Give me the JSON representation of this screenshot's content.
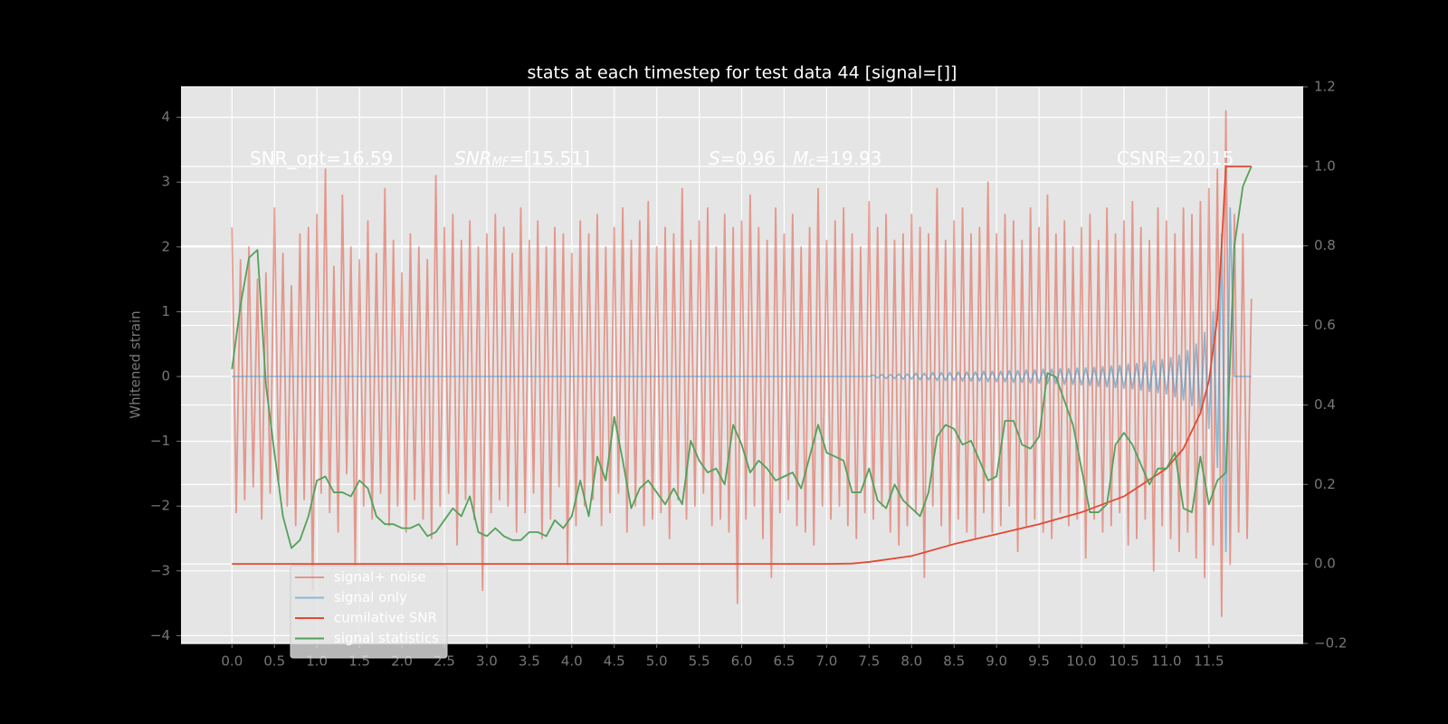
{
  "chart_data": {
    "type": "line",
    "title": "stats at each timestep for test data 44 [signal=[]]",
    "y_label": "Whitened strain",
    "grid": true,
    "y2grid": true,
    "legend": "lower left",
    "xlim": [
      -0.6,
      12.61
    ],
    "ylim": [
      -4.12,
      4.47
    ],
    "y2lim": [
      -0.2,
      1.2
    ],
    "xticks": [
      {
        "value": 0,
        "label": "0.0"
      },
      0.5,
      {
        "value": 1,
        "label": "1.0"
      },
      1.5,
      {
        "value": 2,
        "label": "2.0"
      },
      2.5,
      {
        "value": 3,
        "label": "3.0"
      },
      3.5,
      {
        "value": 4,
        "label": "4.0"
      },
      4.5,
      {
        "value": 5,
        "label": "5.0"
      },
      5.5,
      {
        "value": 6,
        "label": "6.0"
      },
      6.5,
      {
        "value": 7,
        "label": "7.0"
      },
      7.5,
      {
        "value": 8,
        "label": "8.0"
      },
      8.5,
      {
        "value": 9,
        "label": "9.0"
      },
      9.5,
      {
        "value": 10,
        "label": "10.0"
      },
      10.5,
      {
        "value": 11,
        "label": "11.0"
      },
      11.5
    ],
    "yticks": [
      {
        "value": -4,
        "label": "−4"
      },
      {
        "value": -3,
        "label": "−3"
      },
      {
        "value": -2,
        "label": "−2"
      },
      {
        "value": -1,
        "label": "−1"
      },
      0,
      1,
      2,
      3,
      4
    ],
    "y2ticks": [
      {
        "value": -0.2,
        "label": "−0.2"
      },
      {
        "value": 0,
        "label": "0.0"
      },
      0.2,
      0.4,
      0.6,
      0.8,
      {
        "value": 1,
        "label": "1.0"
      },
      1.2
    ],
    "annotations": [
      {
        "segments": [
          {
            "text": "SNR_opt=16.59"
          }
        ]
      },
      {
        "segments": [
          {
            "text": "SNR",
            "style": "italic"
          },
          {
            "text": "MF",
            "style": "italic-sub"
          },
          {
            "text": "=[15.51]"
          }
        ]
      },
      {
        "segments": [
          {
            "text": "S",
            "style": "italic"
          },
          {
            "text": "=0.96 , "
          },
          {
            "text": "M",
            "style": "italic"
          },
          {
            "text": "c",
            "style": "sub"
          },
          {
            "text": "=19.93"
          }
        ]
      },
      {
        "segments": [
          {
            "text": "CSNR=20.15"
          }
        ]
      }
    ],
    "x": [
      0,
      0.05,
      0.1,
      0.15,
      0.2,
      0.25,
      0.3,
      0.35,
      0.4,
      0.45,
      0.5,
      0.55,
      0.6,
      0.65,
      0.7,
      0.75,
      0.8,
      0.85,
      0.9,
      0.95,
      1,
      1.05,
      1.1,
      1.15,
      1.2,
      1.25,
      1.3,
      1.35,
      1.4,
      1.45,
      1.5,
      1.55,
      1.6,
      1.65,
      1.7,
      1.75,
      1.8,
      1.85,
      1.9,
      1.95,
      2,
      2.05,
      2.1,
      2.15,
      2.2,
      2.25,
      2.3,
      2.35,
      2.4,
      2.45,
      2.5,
      2.55,
      2.6,
      2.65,
      2.7,
      2.75,
      2.8,
      2.85,
      2.9,
      2.95,
      3,
      3.05,
      3.1,
      3.15,
      3.2,
      3.25,
      3.3,
      3.35,
      3.4,
      3.45,
      3.5,
      3.55,
      3.6,
      3.65,
      3.7,
      3.75,
      3.8,
      3.85,
      3.9,
      3.95,
      4,
      4.05,
      4.1,
      4.15,
      4.2,
      4.25,
      4.3,
      4.35,
      4.4,
      4.45,
      4.5,
      4.55,
      4.6,
      4.65,
      4.7,
      4.75,
      4.8,
      4.85,
      4.9,
      4.95,
      5,
      5.05,
      5.1,
      5.15,
      5.2,
      5.25,
      5.3,
      5.35,
      5.4,
      5.45,
      5.5,
      5.55,
      5.6,
      5.65,
      5.7,
      5.75,
      5.8,
      5.85,
      5.9,
      5.95,
      6,
      6.05,
      6.1,
      6.15,
      6.2,
      6.25,
      6.3,
      6.35,
      6.4,
      6.45,
      6.5,
      6.55,
      6.6,
      6.65,
      6.7,
      6.75,
      6.8,
      6.85,
      6.9,
      6.95,
      7,
      7.05,
      7.1,
      7.15,
      7.2,
      7.25,
      7.3,
      7.35,
      7.4,
      7.45,
      7.5,
      7.55,
      7.6,
      7.65,
      7.7,
      7.75,
      7.8,
      7.85,
      7.9,
      7.95,
      8,
      8.05,
      8.1,
      8.15,
      8.2,
      8.25,
      8.3,
      8.35,
      8.4,
      8.45,
      8.5,
      8.55,
      8.6,
      8.65,
      8.7,
      8.75,
      8.8,
      8.85,
      8.9,
      8.95,
      9,
      9.05,
      9.1,
      9.15,
      9.2,
      9.25,
      9.3,
      9.35,
      9.4,
      9.45,
      9.5,
      9.55,
      9.6,
      9.65,
      9.7,
      9.75,
      9.8,
      9.85,
      9.9,
      9.95,
      10,
      10.05,
      10.1,
      10.15,
      10.2,
      10.25,
      10.3,
      10.35,
      10.4,
      10.45,
      10.5,
      10.55,
      10.6,
      10.65,
      10.7,
      10.75,
      10.8,
      10.85,
      10.9,
      10.95,
      11,
      11.05,
      11.1,
      11.15,
      11.2,
      11.25,
      11.3,
      11.35,
      11.4,
      11.45,
      11.5,
      11.55,
      11.6,
      11.65,
      11.7,
      11.75,
      11.8,
      11.85,
      11.9,
      11.95,
      12
    ],
    "series": [
      {
        "name": "signal+ noise",
        "color": "#e24a33",
        "opacity": 0.5,
        "values": [
          2.3,
          -2.1,
          1.8,
          -1.9,
          2.0,
          -1.7,
          1.5,
          -2.2,
          1.6,
          -1.8,
          2.6,
          -1.6,
          1.9,
          -2.0,
          1.4,
          -2.3,
          2.2,
          -1.9,
          2.3,
          -3.3,
          2.5,
          -1.8,
          3.2,
          -2.1,
          1.7,
          -2.4,
          2.8,
          -1.5,
          2.0,
          -2.9,
          1.8,
          -2.0,
          2.4,
          -2.2,
          1.9,
          -1.8,
          2.9,
          -2.3,
          2.1,
          -2.0,
          1.6,
          -2.4,
          2.2,
          -1.9,
          2.0,
          -2.2,
          1.8,
          -2.5,
          3.1,
          -2.0,
          2.3,
          -1.8,
          2.5,
          -2.6,
          2.1,
          -1.9,
          2.4,
          -2.2,
          2.0,
          -3.3,
          2.2,
          -2.1,
          2.5,
          -1.9,
          2.3,
          -2.0,
          1.9,
          -2.4,
          2.6,
          -2.1,
          2.1,
          -1.8,
          2.4,
          -2.5,
          2.0,
          -2.2,
          2.3,
          -1.7,
          2.2,
          -2.9,
          1.9,
          -2.3,
          2.4,
          -2.0,
          2.2,
          -1.9,
          2.5,
          -2.3,
          2.0,
          -2.1,
          2.3,
          -1.8,
          2.6,
          -2.4,
          2.1,
          -2.0,
          2.4,
          -2.3,
          2.7,
          -2.2,
          2.0,
          -2.1,
          2.3,
          -2.5,
          2.2,
          -1.9,
          2.9,
          -2.2,
          2.1,
          -2.0,
          2.4,
          -1.8,
          2.6,
          -2.3,
          2.0,
          -2.2,
          2.5,
          -2.4,
          2.3,
          -3.5,
          2.4,
          -2.2,
          2.8,
          -2.0,
          2.3,
          -2.5,
          2.1,
          -3.1,
          2.6,
          -2.1,
          2.2,
          -1.9,
          2.5,
          -2.3,
          2.0,
          -2.4,
          2.3,
          -2.6,
          2.9,
          -2.0,
          2.1,
          -2.2,
          2.4,
          -2.0,
          2.6,
          -2.3,
          2.2,
          -2.5,
          2.0,
          -2.1,
          2.7,
          -2.2,
          2.3,
          -2.0,
          2.5,
          -2.4,
          2.1,
          -2.6,
          2.2,
          -2.3,
          2.5,
          -2.1,
          2.3,
          -3.1,
          2.2,
          -2.0,
          2.9,
          -2.3,
          2.1,
          -2.6,
          2.4,
          -2.2,
          2.6,
          -2.4,
          2.2,
          -2.5,
          2.3,
          -2.1,
          3.0,
          -2.4,
          2.2,
          -2.3,
          2.5,
          -2.0,
          2.4,
          -2.7,
          2.1,
          -2.3,
          2.6,
          -2.2,
          2.3,
          -2.4,
          2.8,
          -2.5,
          2.2,
          -2.1,
          2.4,
          -2.3,
          2.0,
          -2.2,
          2.3,
          -2.8,
          2.5,
          -2.2,
          2.1,
          -2.4,
          2.6,
          -2.3,
          2.2,
          -2.1,
          2.4,
          -2.6,
          2.7,
          -2.5,
          2.3,
          -2.2,
          2.1,
          -3.0,
          2.6,
          -2.3,
          2.4,
          -2.5,
          2.2,
          -2.7,
          2.6,
          -2.4,
          2.5,
          -2.8,
          2.7,
          -3.1,
          2.9,
          -2.6,
          3.2,
          -3.7,
          4.1,
          -2.9,
          2.5,
          -2.4,
          2.2,
          -2.5,
          1.2
        ]
      },
      {
        "name": "signal only",
        "color": "#348abd",
        "opacity": 0.5,
        "values": [
          0,
          0,
          0,
          0,
          0,
          0,
          0,
          0,
          0,
          0,
          0,
          0,
          0,
          0,
          0,
          0,
          0,
          0,
          0,
          0,
          0,
          0,
          0,
          0,
          0,
          0,
          0,
          0,
          0,
          0,
          0,
          0,
          0,
          0,
          0,
          0,
          0,
          0,
          0,
          0,
          0,
          0,
          0,
          0,
          0,
          0,
          0,
          0,
          0,
          0,
          0,
          0,
          0,
          0,
          0,
          0,
          0,
          0,
          0,
          0,
          0,
          0,
          0,
          0,
          0,
          0,
          0,
          0,
          0,
          0,
          0,
          0,
          0,
          0,
          0,
          0,
          0,
          0,
          0,
          0,
          0,
          0,
          0,
          0,
          0,
          0,
          0,
          0,
          0,
          0,
          0,
          0,
          0,
          0,
          0,
          0,
          0,
          0,
          0,
          0,
          0,
          0,
          0,
          0,
          0,
          0,
          0,
          0,
          0,
          0,
          0,
          0,
          0,
          0,
          0,
          0,
          0,
          0,
          0,
          0,
          0,
          0,
          0,
          0,
          0,
          0,
          0,
          0,
          0,
          0,
          0,
          0,
          0,
          0,
          0,
          0,
          0,
          0,
          0,
          0,
          0,
          0,
          0,
          0,
          0,
          0,
          0,
          0,
          0,
          0,
          0,
          0.02,
          -0.02,
          0.03,
          -0.03,
          0.03,
          -0.03,
          0.04,
          -0.04,
          0.04,
          -0.04,
          0.05,
          -0.05,
          0.05,
          -0.05,
          0.06,
          -0.06,
          0.06,
          -0.06,
          0.06,
          -0.06,
          0.07,
          -0.07,
          0.07,
          -0.07,
          0.07,
          -0.07,
          0.08,
          -0.08,
          0.08,
          -0.08,
          0.08,
          -0.08,
          0.09,
          -0.09,
          0.09,
          -0.09,
          0.1,
          -0.1,
          0.1,
          -0.1,
          0.11,
          -0.11,
          0.11,
          -0.11,
          0.12,
          -0.12,
          0.12,
          -0.12,
          0.13,
          -0.13,
          0.13,
          -0.14,
          0.14,
          -0.15,
          0.15,
          -0.16,
          0.16,
          -0.17,
          0.17,
          -0.18,
          0.19,
          -0.19,
          0.2,
          -0.21,
          0.22,
          -0.23,
          0.24,
          -0.25,
          0.26,
          -0.27,
          0.29,
          -0.31,
          0.33,
          -0.36,
          0.4,
          -0.45,
          0.5,
          -0.58,
          0.68,
          -0.8,
          1.0,
          -1.4,
          2.2,
          -2.7,
          2.6,
          0,
          0,
          0,
          0,
          0
        ]
      },
      {
        "name": "cumilative SNR",
        "color": "#e24a33",
        "axis": "y2",
        "x": [
          0,
          7.0,
          7.3,
          7.5,
          8.0,
          8.5,
          9.0,
          9.5,
          10.0,
          10.5,
          11.0,
          11.2,
          11.4,
          11.5,
          11.6,
          11.65,
          11.7,
          12.0
        ],
        "values": [
          0,
          0,
          0.001,
          0.005,
          0.02,
          0.05,
          0.075,
          0.1,
          0.13,
          0.17,
          0.24,
          0.29,
          0.38,
          0.46,
          0.62,
          0.8,
          1.0,
          1.0
        ]
      },
      {
        "name": "signal statistics",
        "color": "#55a05a",
        "axis": "y2",
        "x": [
          0,
          0.1,
          0.2,
          0.3,
          0.4,
          0.5,
          0.6,
          0.7,
          0.8,
          0.9,
          1,
          1.1,
          1.2,
          1.3,
          1.4,
          1.5,
          1.6,
          1.7,
          1.8,
          1.9,
          2,
          2.1,
          2.2,
          2.3,
          2.4,
          2.5,
          2.6,
          2.7,
          2.8,
          2.9,
          3,
          3.1,
          3.2,
          3.3,
          3.4,
          3.5,
          3.6,
          3.7,
          3.8,
          3.9,
          4,
          4.1,
          4.2,
          4.3,
          4.4,
          4.5,
          4.6,
          4.7,
          4.8,
          4.9,
          5,
          5.1,
          5.2,
          5.3,
          5.4,
          5.5,
          5.6,
          5.7,
          5.8,
          5.9,
          6,
          6.1,
          6.2,
          6.3,
          6.4,
          6.5,
          6.6,
          6.7,
          6.8,
          6.9,
          7,
          7.1,
          7.2,
          7.3,
          7.4,
          7.5,
          7.6,
          7.7,
          7.8,
          7.9,
          8,
          8.1,
          8.2,
          8.3,
          8.4,
          8.5,
          8.6,
          8.7,
          8.8,
          8.9,
          9,
          9.1,
          9.2,
          9.3,
          9.4,
          9.5,
          9.6,
          9.7,
          9.8,
          9.9,
          10,
          10.1,
          10.2,
          10.3,
          10.4,
          10.5,
          10.6,
          10.7,
          10.8,
          10.9,
          11,
          11.1,
          11.2,
          11.3,
          11.4,
          11.5,
          11.6,
          11.7,
          11.8,
          11.9,
          12
        ],
        "values": [
          0.49,
          0.65,
          0.77,
          0.79,
          0.45,
          0.28,
          0.12,
          0.04,
          0.06,
          0.12,
          0.21,
          0.22,
          0.18,
          0.18,
          0.17,
          0.21,
          0.19,
          0.12,
          0.1,
          0.1,
          0.09,
          0.09,
          0.1,
          0.07,
          0.08,
          0.11,
          0.14,
          0.12,
          0.17,
          0.08,
          0.07,
          0.09,
          0.07,
          0.06,
          0.06,
          0.08,
          0.08,
          0.07,
          0.11,
          0.09,
          0.12,
          0.21,
          0.12,
          0.27,
          0.21,
          0.37,
          0.26,
          0.14,
          0.19,
          0.21,
          0.18,
          0.15,
          0.19,
          0.15,
          0.31,
          0.26,
          0.23,
          0.24,
          0.2,
          0.35,
          0.3,
          0.23,
          0.26,
          0.24,
          0.21,
          0.22,
          0.23,
          0.19,
          0.27,
          0.35,
          0.28,
          0.27,
          0.26,
          0.18,
          0.18,
          0.24,
          0.16,
          0.14,
          0.2,
          0.16,
          0.14,
          0.12,
          0.18,
          0.32,
          0.35,
          0.34,
          0.3,
          0.31,
          0.26,
          0.21,
          0.22,
          0.36,
          0.36,
          0.3,
          0.29,
          0.32,
          0.48,
          0.47,
          0.41,
          0.35,
          0.24,
          0.13,
          0.13,
          0.15,
          0.3,
          0.33,
          0.3,
          0.25,
          0.2,
          0.24,
          0.24,
          0.28,
          0.14,
          0.13,
          0.27,
          0.15,
          0.21,
          0.23,
          0.8,
          0.95,
          1.0
        ]
      }
    ]
  }
}
